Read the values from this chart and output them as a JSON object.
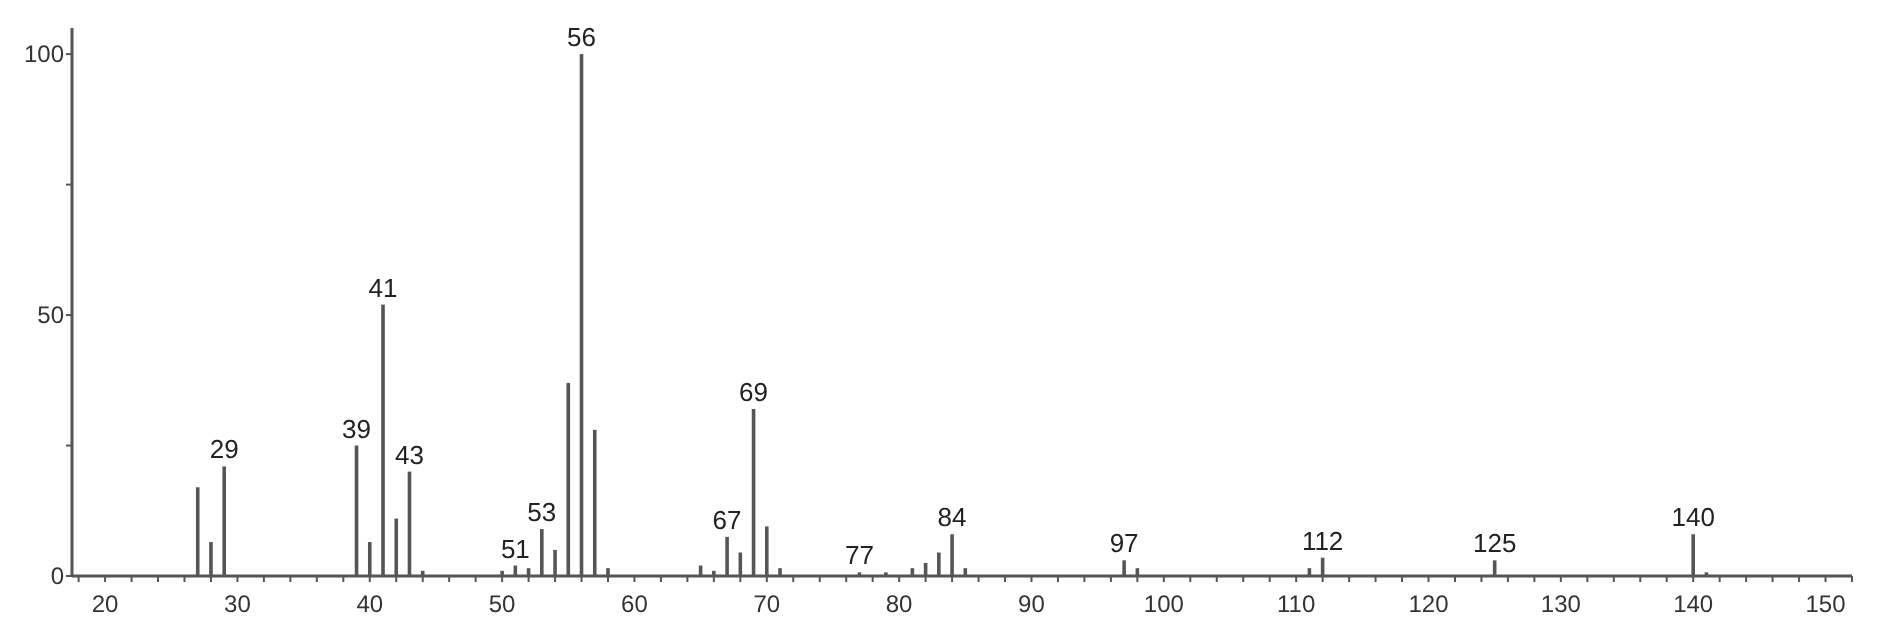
{
  "chart_data": {
    "type": "bar",
    "color": "#555555",
    "x": [
      27,
      28,
      29,
      39,
      40,
      41,
      42,
      43,
      44,
      50,
      51,
      52,
      53,
      54,
      55,
      56,
      57,
      58,
      65,
      66,
      67,
      68,
      69,
      70,
      71,
      77,
      79,
      81,
      82,
      83,
      84,
      85,
      97,
      98,
      111,
      112,
      125,
      140,
      141
    ],
    "values": [
      17,
      6.5,
      21,
      25,
      6.5,
      52,
      11,
      20,
      1,
      1,
      2,
      1.5,
      9,
      5,
      37,
      100,
      28,
      1.5,
      2,
      1,
      7.5,
      4.5,
      32,
      9.5,
      1.5,
      0.7,
      0.7,
      1.5,
      2.5,
      4.5,
      8,
      1.5,
      3,
      1.5,
      1.5,
      3.5,
      3,
      8,
      0.7
    ],
    "annotations": [
      {
        "text": "29",
        "x": 29,
        "y": 21
      },
      {
        "text": "39",
        "x": 39,
        "y": 25
      },
      {
        "text": "41",
        "x": 41,
        "y": 52
      },
      {
        "text": "43",
        "x": 43,
        "y": 20
      },
      {
        "text": "51",
        "x": 51,
        "y": 2
      },
      {
        "text": "53",
        "x": 53,
        "y": 9
      },
      {
        "text": "56",
        "x": 56,
        "y": 100
      },
      {
        "text": "67",
        "x": 67,
        "y": 7.5
      },
      {
        "text": "69",
        "x": 69,
        "y": 32
      },
      {
        "text": "77",
        "x": 77,
        "y": 0.7
      },
      {
        "text": "84",
        "x": 84,
        "y": 8
      },
      {
        "text": "97",
        "x": 97,
        "y": 3
      },
      {
        "text": "112",
        "x": 112,
        "y": 3.5
      },
      {
        "text": "125",
        "x": 125,
        "y": 3
      },
      {
        "text": "140",
        "x": 140,
        "y": 8
      }
    ],
    "xlim": [
      17.5,
      152
    ],
    "xticks": [
      {
        "value": 18,
        "label": null
      },
      20,
      {
        "value": 22,
        "label": null
      },
      {
        "value": 24,
        "label": null
      },
      {
        "value": 26,
        "label": null
      },
      {
        "value": 28,
        "label": null
      },
      30,
      {
        "value": 32,
        "label": null
      },
      {
        "value": 34,
        "label": null
      },
      {
        "value": 36,
        "label": null
      },
      {
        "value": 38,
        "label": null
      },
      40,
      {
        "value": 42,
        "label": null
      },
      {
        "value": 44,
        "label": null
      },
      {
        "value": 46,
        "label": null
      },
      {
        "value": 48,
        "label": null
      },
      50,
      {
        "value": 52,
        "label": null
      },
      {
        "value": 54,
        "label": null
      },
      {
        "value": 56,
        "label": null
      },
      {
        "value": 58,
        "label": null
      },
      60,
      {
        "value": 62,
        "label": null
      },
      {
        "value": 64,
        "label": null
      },
      {
        "value": 66,
        "label": null
      },
      {
        "value": 68,
        "label": null
      },
      70,
      {
        "value": 72,
        "label": null
      },
      {
        "value": 74,
        "label": null
      },
      {
        "value": 76,
        "label": null
      },
      {
        "value": 78,
        "label": null
      },
      80,
      {
        "value": 82,
        "label": null
      },
      {
        "value": 84,
        "label": null
      },
      {
        "value": 86,
        "label": null
      },
      {
        "value": 88,
        "label": null
      },
      90,
      {
        "value": 92,
        "label": null
      },
      {
        "value": 94,
        "label": null
      },
      {
        "value": 96,
        "label": null
      },
      {
        "value": 98,
        "label": null
      },
      100,
      {
        "value": 102,
        "label": null
      },
      {
        "value": 104,
        "label": null
      },
      {
        "value": 106,
        "label": null
      },
      {
        "value": 108,
        "label": null
      },
      110,
      {
        "value": 112,
        "label": null
      },
      {
        "value": 114,
        "label": null
      },
      {
        "value": 116,
        "label": null
      },
      {
        "value": 118,
        "label": null
      },
      120,
      {
        "value": 122,
        "label": null
      },
      {
        "value": 124,
        "label": null
      },
      {
        "value": 126,
        "label": null
      },
      {
        "value": 128,
        "label": null
      },
      130,
      {
        "value": 132,
        "label": null
      },
      {
        "value": 134,
        "label": null
      },
      {
        "value": 136,
        "label": null
      },
      {
        "value": 138,
        "label": null
      },
      140,
      {
        "value": 142,
        "label": null
      },
      {
        "value": 144,
        "label": null
      },
      {
        "value": 146,
        "label": null
      },
      {
        "value": 148,
        "label": null
      },
      150,
      {
        "value": 152,
        "label": null
      }
    ],
    "ylim": [
      0,
      105
    ],
    "yticks": [
      0,
      {
        "value": 25,
        "label": null
      },
      50,
      {
        "value": 75,
        "label": null
      },
      100
    ],
    "grid": false
  }
}
